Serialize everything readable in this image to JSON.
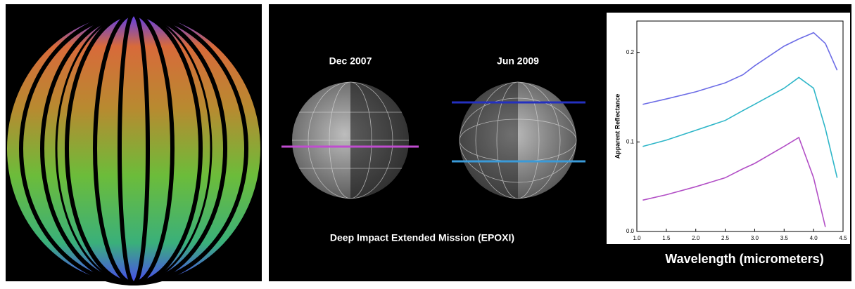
{
  "globes": [
    {
      "label": "Dec 2007"
    },
    {
      "label": "Jun 2009"
    }
  ],
  "caption": "Deep Impact Extended Mission (EPOXI)",
  "chart_data": {
    "type": "line",
    "x_label": "Wavelength (micrometers)",
    "y_label": "Apparent Reflectance",
    "x": [
      1.1,
      1.5,
      2.0,
      2.5,
      2.8,
      3.0,
      3.5,
      3.75,
      4.0,
      4.2,
      4.4
    ],
    "series": [
      {
        "color": "#6c6ce6",
        "values": [
          0.142,
          0.148,
          0.156,
          0.166,
          0.175,
          0.185,
          0.207,
          0.215,
          0.222,
          0.21,
          0.18
        ]
      },
      {
        "color": "#2eb6c8",
        "values": [
          0.095,
          0.102,
          0.113,
          0.124,
          0.135,
          0.142,
          0.16,
          0.172,
          0.16,
          0.115,
          0.06
        ]
      },
      {
        "color": "#b24fc6",
        "values": [
          0.035,
          0.041,
          0.05,
          0.06,
          0.07,
          0.076,
          0.095,
          0.105,
          0.06,
          0.005,
          null
        ]
      }
    ],
    "xlim": [
      1.0,
      4.5
    ],
    "ylim": [
      0,
      0.235
    ],
    "xticks": [
      {
        "value": 1,
        "label": "1.0"
      },
      1.5,
      {
        "value": 2,
        "label": "2.0"
      },
      2.5,
      {
        "value": 3,
        "label": "3.0"
      },
      3.5,
      {
        "value": 4,
        "label": "4.0"
      },
      4.5
    ],
    "yticks": [
      {
        "value": 0,
        "label": "0.0"
      },
      0.1,
      0.2
    ]
  }
}
